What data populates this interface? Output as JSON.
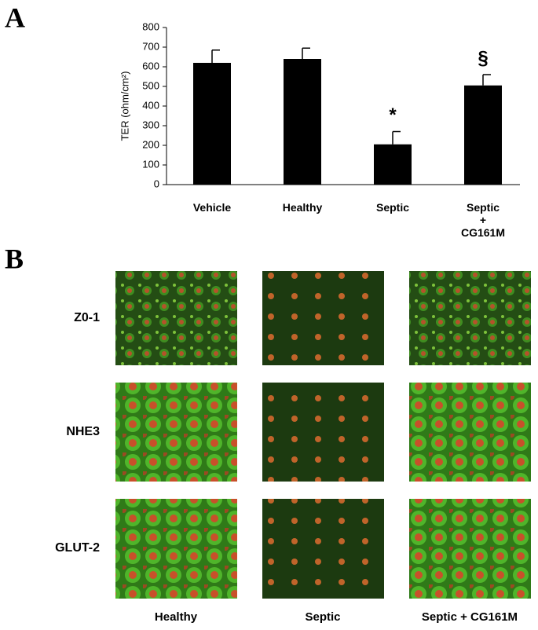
{
  "panel_labels": [
    "A",
    "B"
  ],
  "chart_data": {
    "type": "bar",
    "y_label": "TER (ohm/cm²)",
    "categories": [
      "Vehicle",
      "Healthy",
      "Septic",
      "Septic\n+\nCG161M"
    ],
    "values": [
      620,
      640,
      205,
      505
    ],
    "errors": [
      65,
      55,
      65,
      55
    ],
    "annotations": [
      null,
      null,
      "*",
      "§"
    ],
    "color": "#000000",
    "ylim": [
      0,
      800
    ],
    "yticks": [
      0,
      100,
      200,
      300,
      400,
      500,
      600,
      700,
      800
    ]
  },
  "panel_b": {
    "columns": [
      "Healthy",
      "Septic",
      "Septic + CG161M"
    ],
    "rows": [
      "Z0-1",
      "NHE3",
      "GLUT-2"
    ]
  }
}
